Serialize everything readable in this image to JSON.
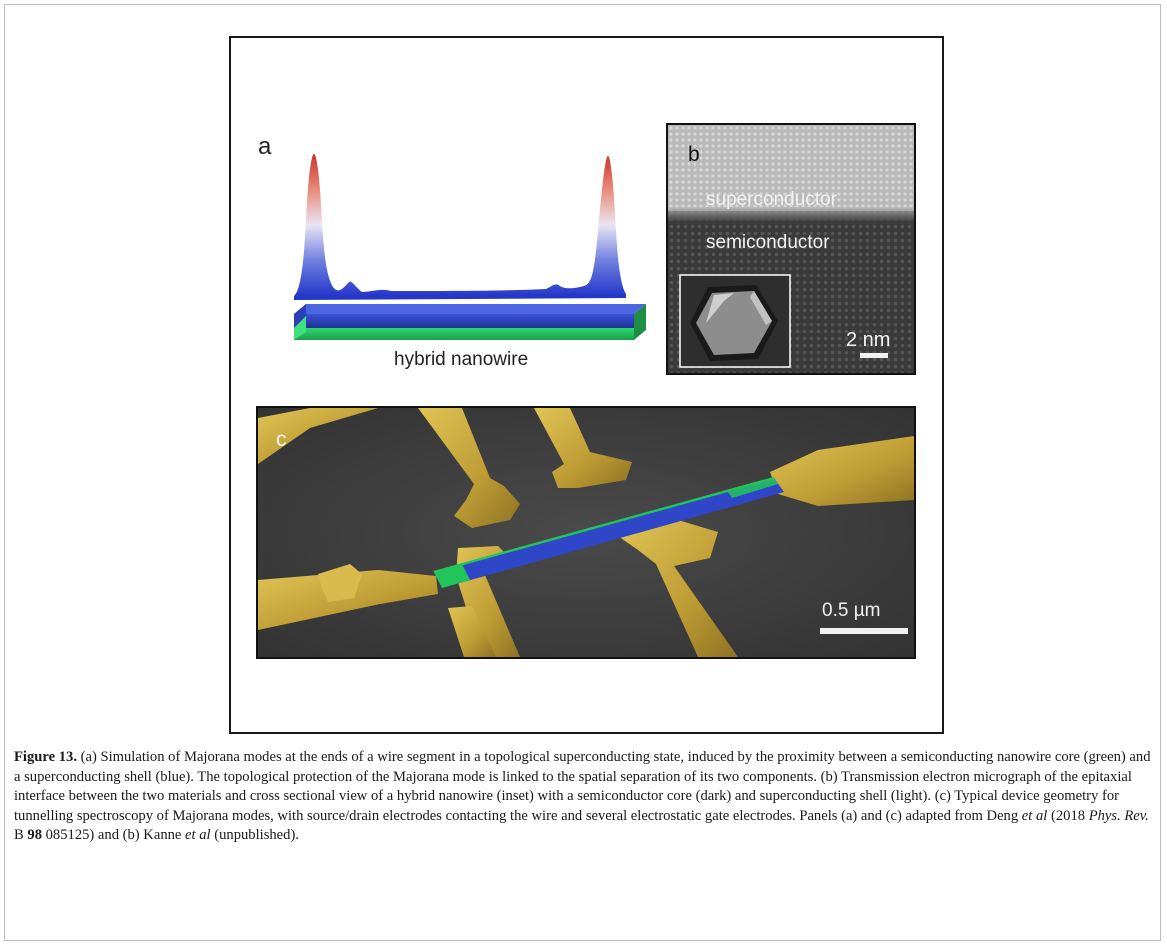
{
  "panel_a": {
    "label": "a",
    "nanowire_label": "hybrid nanowire"
  },
  "panel_b": {
    "label": "b",
    "top_layer_label": "superconductor",
    "bottom_layer_label": "semiconductor",
    "scale_bar_label": "2 nm"
  },
  "panel_c": {
    "label": "c",
    "scale_bar_label": "0.5 µm"
  },
  "caption": {
    "figure_label": "Figure 13.",
    "text_1": " (a) Simulation of Majorana modes at the ends of a wire segment in a topological superconducting state, induced by the proximity between a semiconducting nanowire core (green) and a superconducting shell (blue). The topological protection of the Majorana mode is linked to the spatial separation of its two components. (b) Transmission electron micrograph of the epitaxial interface between the two materials and cross sectional view of a hybrid nanowire (inset) with a semiconductor core (dark) and superconducting shell (light). (c) Typical device geometry for tunnelling spectroscopy of Majorana modes, with source/drain electrodes contacting the wire and several electrostatic gate electrodes. Panels (a) and (c) adapted from Deng ",
    "et_al_1": "et al",
    "text_2": " (2018 ",
    "journal": "Phys. Rev.",
    "text_3": " B ",
    "volume": "98",
    "text_4": " 085125) and (b) Kanne ",
    "et_al_2": "et al",
    "text_5": " (unpublished)."
  },
  "colors": {
    "nanowire_core": "#22c55a",
    "nanowire_shell": "#2f46c8",
    "electrode_gold": "#c9a83a",
    "substrate": "#3d3d3d",
    "peak_top": "#d63a2b",
    "peak_base": "#2a3fd0"
  }
}
